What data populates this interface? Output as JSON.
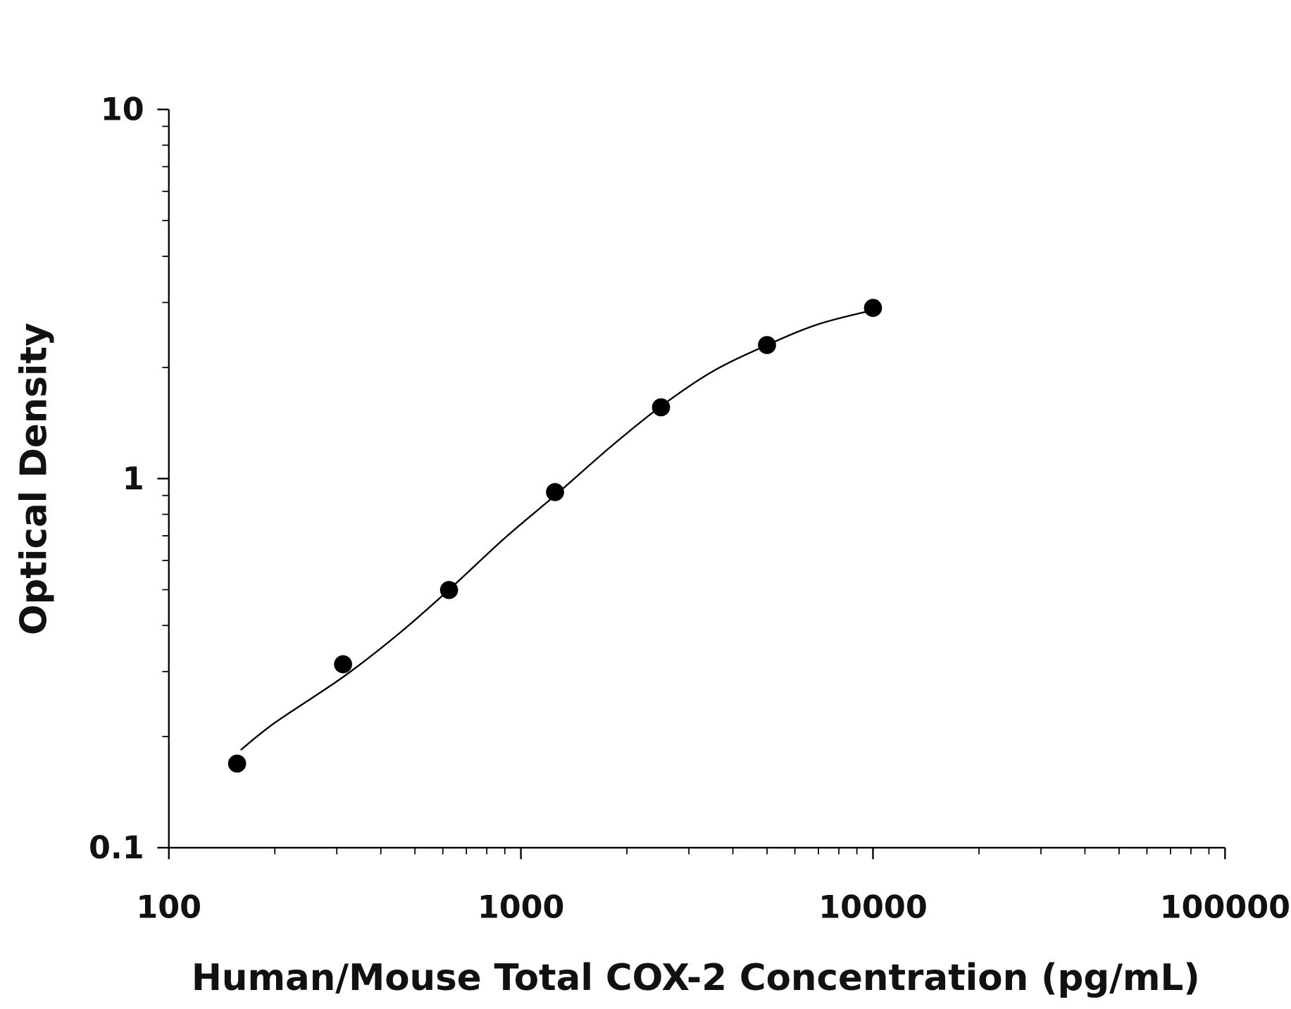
{
  "chart_data": {
    "type": "scatter",
    "title": "",
    "xlabel": "Human/Mouse Total COX-2 Concentration (pg/mL)",
    "ylabel": "Optical Density",
    "x_scale": "log",
    "y_scale": "log",
    "xlim": [
      100,
      100000
    ],
    "ylim": [
      0.1,
      10
    ],
    "x_tick_labels": [
      "100",
      "1000",
      "10000",
      "100000"
    ],
    "y_tick_labels": [
      "0.1",
      "1",
      "10"
    ],
    "grid": false,
    "legend": "none",
    "marker_color": "#000000",
    "series": [
      {
        "x": [
          156.25,
          312.5,
          625,
          1250,
          2500,
          5000,
          10000
        ],
        "y": [
          0.169,
          0.314,
          0.499,
          0.919,
          1.56,
          2.3,
          2.9
        ]
      }
    ],
    "fit_curve": {
      "x": [
        160,
        200,
        312.5,
        450,
        625,
        900,
        1250,
        1800,
        2500,
        3500,
        5000,
        7000,
        10000
      ],
      "y": [
        0.184,
        0.218,
        0.29,
        0.38,
        0.5,
        0.69,
        0.9,
        1.22,
        1.57,
        1.95,
        2.3,
        2.62,
        2.86
      ]
    }
  }
}
